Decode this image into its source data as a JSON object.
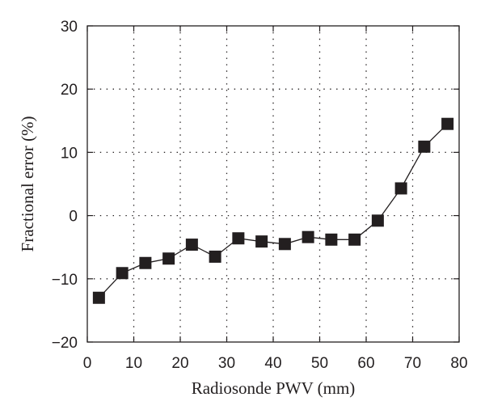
{
  "chart_data": {
    "type": "line",
    "title": "",
    "xlabel": "Radiosonde PWV (mm)",
    "ylabel": "Fractional error (%)",
    "xlim": [
      0,
      80
    ],
    "ylim": [
      -20,
      30
    ],
    "xticks": [
      0,
      10,
      20,
      30,
      40,
      50,
      60,
      70,
      80
    ],
    "yticks": [
      -20,
      -10,
      0,
      10,
      20,
      30
    ],
    "xtick_labels": [
      "0",
      "10",
      "20",
      "30",
      "40",
      "50",
      "60",
      "70",
      "80"
    ],
    "ytick_labels": [
      "−20",
      "−10",
      "0",
      "10",
      "20",
      "30"
    ],
    "grid": true,
    "grid_style": "dotted",
    "marker": "square",
    "colors": {
      "series": "#231f20",
      "axes": "#231f20",
      "grid": "#231f20",
      "background": "#ffffff"
    },
    "series": [
      {
        "x": [
          2.5,
          7.5,
          12.5,
          17.5,
          22.5,
          27.5,
          32.5,
          37.5,
          42.5,
          47.5,
          52.5,
          57.5,
          62.5,
          67.5,
          72.5,
          77.5
        ],
        "y": [
          -13.0,
          -9.1,
          -7.5,
          -6.8,
          -4.6,
          -6.5,
          -3.6,
          -4.1,
          -4.5,
          -3.4,
          -3.8,
          -3.8,
          -0.8,
          4.3,
          10.9,
          14.5
        ]
      }
    ]
  }
}
